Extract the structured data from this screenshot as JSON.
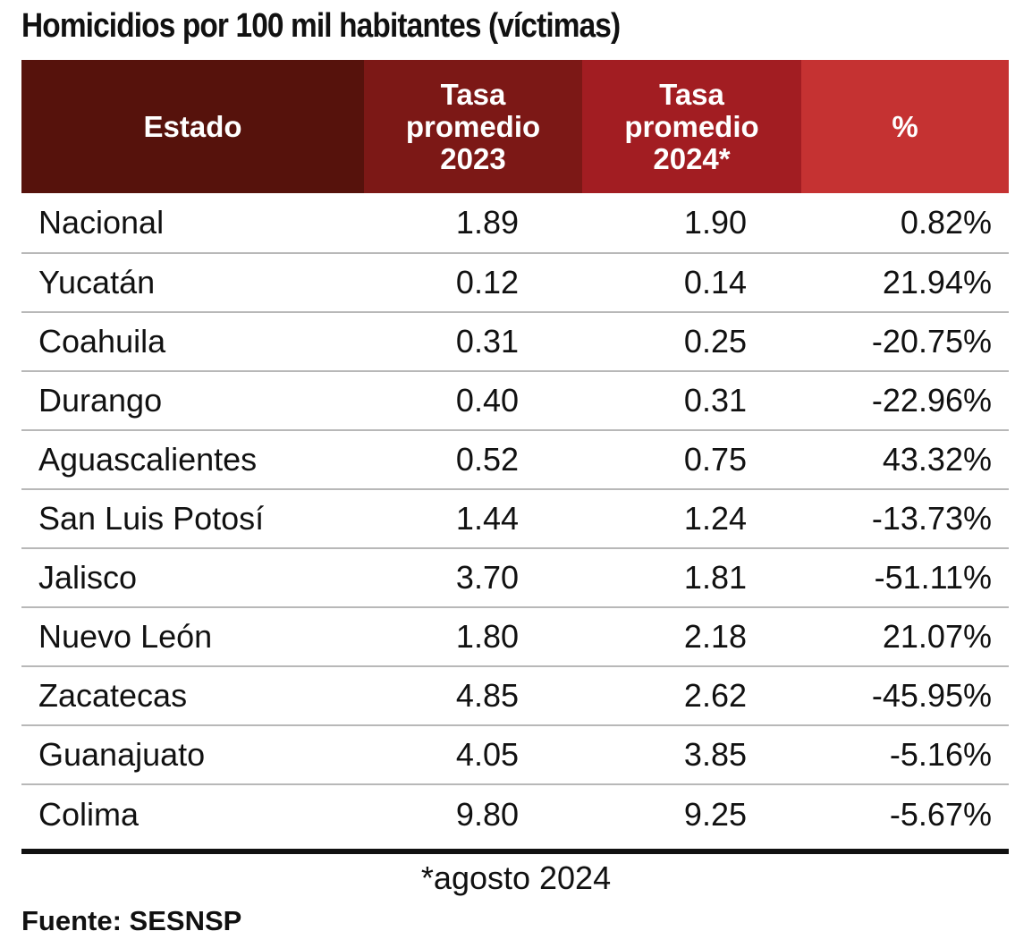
{
  "title": "Homicidios por 100 mil habitantes (víctimas)",
  "header_colors": [
    "#56120c",
    "#7c1816",
    "#a21d22",
    "#c53232"
  ],
  "columns": [
    {
      "lines": [
        "Estado"
      ]
    },
    {
      "lines": [
        "Tasa",
        "promedio",
        "2023"
      ]
    },
    {
      "lines": [
        "Tasa",
        "promedio",
        "2024*"
      ]
    },
    {
      "lines": [
        "%"
      ]
    }
  ],
  "chart_data": {
    "type": "table",
    "title": "Homicidios por 100 mil habitantes (víctimas)",
    "headers": [
      "Estado",
      "Tasa promedio 2023",
      "Tasa promedio 2024*",
      "%"
    ],
    "rows": [
      [
        "Nacional",
        "1.89",
        "1.90",
        "0.82%"
      ],
      [
        "Yucatán",
        "0.12",
        "0.14",
        "21.94%"
      ],
      [
        "Coahuila",
        "0.31",
        "0.25",
        "-20.75%"
      ],
      [
        "Durango",
        "0.40",
        "0.31",
        "-22.96%"
      ],
      [
        "Aguascalientes",
        "0.52",
        "0.75",
        "43.32%"
      ],
      [
        "San Luis Potosí",
        "1.44",
        "1.24",
        "-13.73%"
      ],
      [
        "Jalisco",
        "3.70",
        "1.81",
        "-51.11%"
      ],
      [
        "Nuevo León",
        "1.80",
        "2.18",
        "21.07%"
      ],
      [
        "Zacatecas",
        "4.85",
        "2.62",
        "-45.95%"
      ],
      [
        "Guanajuato",
        "4.05",
        "3.85",
        "-5.16%"
      ],
      [
        "Colima",
        "9.80",
        "9.25",
        "-5.67%"
      ]
    ]
  },
  "footnote": "*agosto 2024",
  "source": "Fuente: SESNSP"
}
